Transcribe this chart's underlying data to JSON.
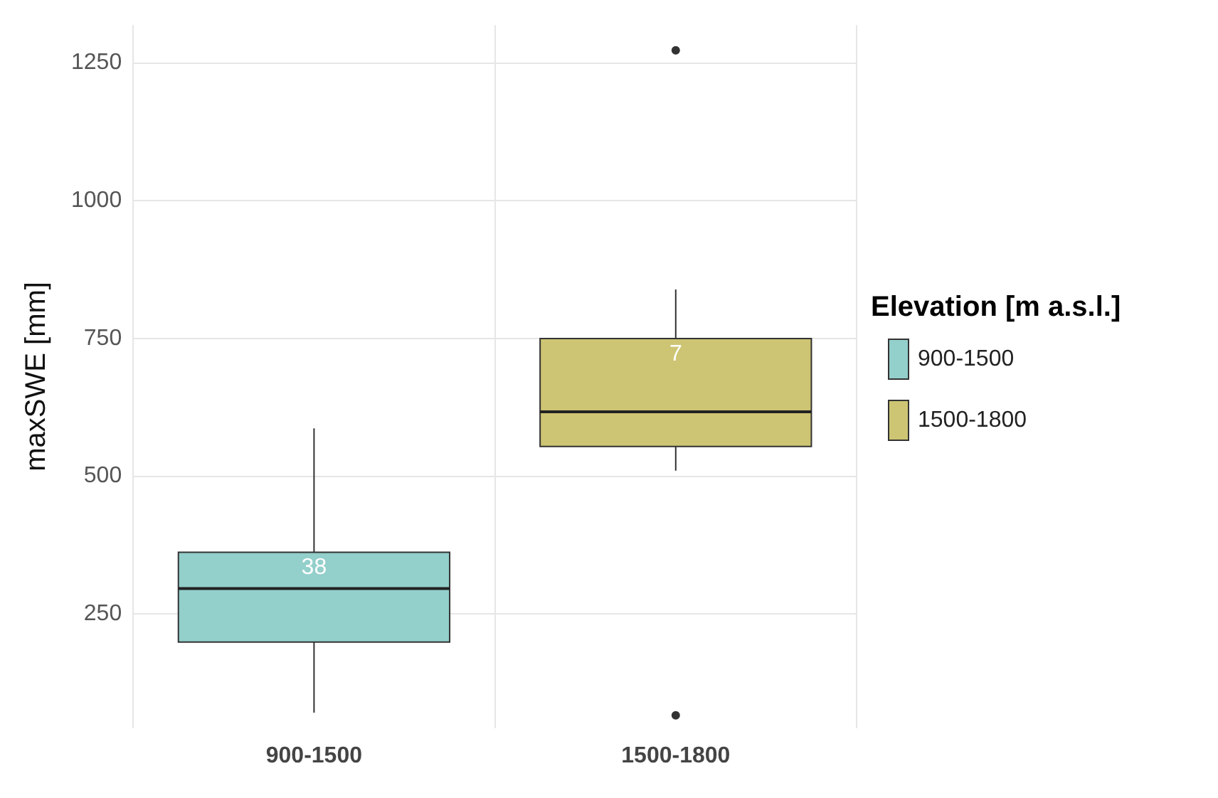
{
  "chart_data": {
    "type": "box",
    "ylabel": "maxSWE [mm]",
    "legend_title": "Elevation [m a.s.l.]",
    "legend": "right",
    "grid": true,
    "categories": [
      "900-1500",
      "1500-1800"
    ],
    "series": [
      {
        "name": "900-1500",
        "color": "#93cfcb",
        "boxes": [
          {
            "low": 71,
            "q1": 199,
            "median": 296,
            "q3": 362,
            "high": 587
          },
          null
        ]
      },
      {
        "name": "1500-1800",
        "color": "#cdc573",
        "boxes": [
          null,
          {
            "low": 510,
            "q1": 554,
            "median": 617,
            "q3": 750,
            "high": 839,
            "outliers": [
              1273,
              66
            ]
          }
        ]
      }
    ],
    "ylim": [
      43,
      1319
    ],
    "yticks": [
      250,
      500,
      750,
      1000,
      1250
    ],
    "annotations": [
      "38",
      "7"
    ]
  }
}
